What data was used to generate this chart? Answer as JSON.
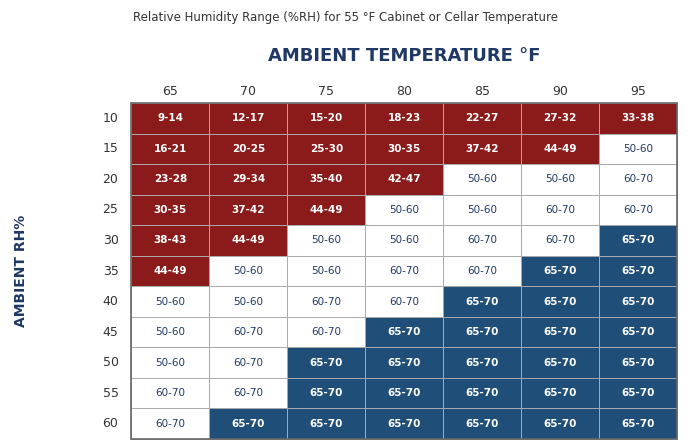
{
  "title": "Relative Humidity Range (%RH) for 55 °F Cabinet or Cellar Temperature",
  "col_header": "AMBIENT TEMPERATURE °F",
  "row_header": "AMBIENT RH%",
  "col_labels": [
    "65",
    "70",
    "75",
    "80",
    "85",
    "90",
    "95"
  ],
  "row_labels": [
    "10",
    "15",
    "20",
    "25",
    "30",
    "35",
    "40",
    "45",
    "50",
    "55",
    "60"
  ],
  "cells": [
    [
      "9-14",
      "12-17",
      "15-20",
      "18-23",
      "22-27",
      "27-32",
      "33-38"
    ],
    [
      "16-21",
      "20-25",
      "25-30",
      "30-35",
      "37-42",
      "44-49",
      "50-60"
    ],
    [
      "23-28",
      "29-34",
      "35-40",
      "42-47",
      "50-60",
      "50-60",
      "60-70"
    ],
    [
      "30-35",
      "37-42",
      "44-49",
      "50-60",
      "50-60",
      "60-70",
      "60-70"
    ],
    [
      "38-43",
      "44-49",
      "50-60",
      "50-60",
      "60-70",
      "60-70",
      "65-70"
    ],
    [
      "44-49",
      "50-60",
      "50-60",
      "60-70",
      "60-70",
      "65-70",
      "65-70"
    ],
    [
      "50-60",
      "50-60",
      "60-70",
      "60-70",
      "65-70",
      "65-70",
      "65-70"
    ],
    [
      "50-60",
      "60-70",
      "60-70",
      "65-70",
      "65-70",
      "65-70",
      "65-70"
    ],
    [
      "50-60",
      "60-70",
      "65-70",
      "65-70",
      "65-70",
      "65-70",
      "65-70"
    ],
    [
      "60-70",
      "60-70",
      "65-70",
      "65-70",
      "65-70",
      "65-70",
      "65-70"
    ],
    [
      "60-70",
      "65-70",
      "65-70",
      "65-70",
      "65-70",
      "65-70",
      "65-70"
    ]
  ],
  "cell_colors": [
    [
      "red",
      "red",
      "red",
      "red",
      "red",
      "red",
      "red"
    ],
    [
      "red",
      "red",
      "red",
      "red",
      "red",
      "red",
      "white"
    ],
    [
      "red",
      "red",
      "red",
      "red",
      "white",
      "white",
      "white"
    ],
    [
      "red",
      "red",
      "red",
      "white",
      "white",
      "white",
      "white"
    ],
    [
      "red",
      "red",
      "white",
      "white",
      "white",
      "white",
      "blue"
    ],
    [
      "red",
      "white",
      "white",
      "white",
      "white",
      "blue",
      "blue"
    ],
    [
      "white",
      "white",
      "white",
      "white",
      "blue",
      "blue",
      "blue"
    ],
    [
      "white",
      "white",
      "white",
      "blue",
      "blue",
      "blue",
      "blue"
    ],
    [
      "white",
      "white",
      "blue",
      "blue",
      "blue",
      "blue",
      "blue"
    ],
    [
      "white",
      "white",
      "blue",
      "blue",
      "blue",
      "blue",
      "blue"
    ],
    [
      "white",
      "blue",
      "blue",
      "blue",
      "blue",
      "blue",
      "blue"
    ]
  ],
  "color_red": "#8B1A1A",
  "color_blue": "#1F4E79",
  "color_white": "#FFFFFF",
  "color_header_text": "#1F3864",
  "color_border": "#AAAAAA",
  "background_color": "#FFFFFF"
}
